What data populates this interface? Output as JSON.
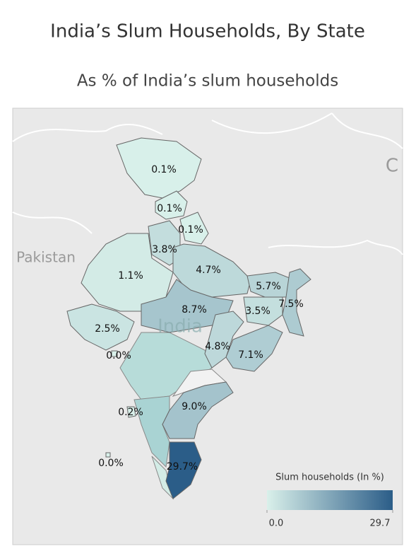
{
  "chart_data": {
    "type": "choropleth",
    "title": "India’s Slum Households, By State",
    "subtitle": "As % of India’s slum households",
    "values": [
      0.1,
      0.1,
      0.1,
      3.8,
      1.1,
      4.7,
      5.7,
      7.5,
      8.7,
      3.5,
      2.5,
      0.0,
      4.8,
      7.1,
      9.0,
      0.2,
      0.0,
      29.7
    ],
    "value_labels": [
      "0.1%",
      "0.1%",
      "0.1%",
      "3.8%",
      "1.1%",
      "4.7%",
      "5.7%",
      "7.5%",
      "8.7%",
      "3.5%",
      "2.5%",
      "0.0%",
      "4.8%",
      "7.1%",
      "9.0%",
      "0.2%",
      "0.0%",
      "29.7%"
    ],
    "map_labels": [
      "Pakistan",
      "India",
      "C"
    ],
    "colors": [
      "#d9f0ea",
      "#2b5d88"
    ],
    "legend": {
      "title": "Slum households (In %)",
      "range": [
        0,
        29.7
      ],
      "ticks": [
        {
          "value": 0,
          "label": "0.0"
        },
        {
          "value": 29.7,
          "label": "29.7"
        }
      ]
    }
  }
}
